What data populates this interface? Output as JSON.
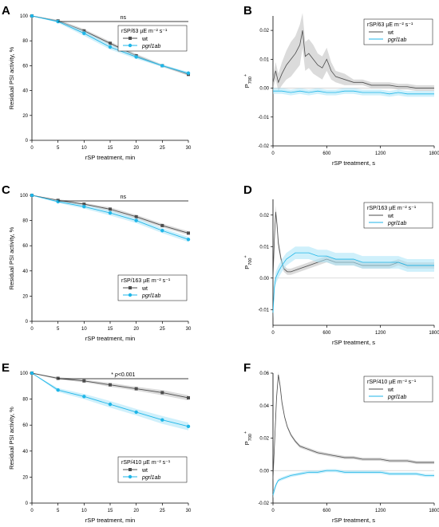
{
  "figure": {
    "panels": [
      "A",
      "B",
      "C",
      "D",
      "E",
      "F"
    ]
  },
  "colors": {
    "wt": "#4d4d4d",
    "wt_light": "#bdbdbd",
    "mutant": "#1fb6e8",
    "mutant_light": "#a8e3f7",
    "zero_line": "#d0d0d0"
  },
  "chart_data": [
    {
      "panel": "A",
      "type": "line",
      "xlabel": "rSP treatment, min",
      "ylabel": "Residual PSI activity, %",
      "xlim": [
        0,
        30
      ],
      "ylim": [
        0,
        100
      ],
      "xticks": [
        0,
        5,
        10,
        15,
        20,
        25,
        30
      ],
      "yticks": [
        0,
        20,
        40,
        60,
        80,
        100
      ],
      "legend": {
        "title": "rSP/63 µE m⁻² s⁻¹",
        "position": "top-right"
      },
      "annotation": {
        "text": "ns",
        "x_from": 5,
        "x_to": 30
      },
      "x": [
        0,
        5,
        10,
        15,
        20,
        25,
        30
      ],
      "series": [
        {
          "name": "wt",
          "values": [
            100,
            96,
            88,
            78,
            68,
            60,
            53
          ],
          "error": [
            0,
            1,
            1.5,
            1.5,
            1.5,
            1,
            1
          ]
        },
        {
          "name": "pgrl1ab",
          "values": [
            100,
            95.5,
            86,
            75,
            67,
            60,
            54
          ],
          "error": [
            0,
            1,
            2,
            2,
            1.5,
            1,
            1
          ]
        }
      ]
    },
    {
      "panel": "B",
      "type": "line",
      "xlabel": "rSP treatment, s",
      "ylabel": "P700+",
      "xlim": [
        0,
        1800
      ],
      "ylim": [
        -0.02,
        0.025
      ],
      "xticks": [
        0,
        600,
        1200,
        1800
      ],
      "yticks": [
        -0.02,
        -0.01,
        0.0,
        0.01,
        0.02
      ],
      "legend": {
        "title": "rSP/63 µE m⁻² s⁻¹",
        "position": "top-right"
      },
      "series": [
        {
          "name": "wt",
          "x": [
            0,
            30,
            60,
            100,
            150,
            200,
            250,
            300,
            330,
            360,
            400,
            450,
            500,
            550,
            600,
            650,
            700,
            800,
            900,
            1000,
            1100,
            1200,
            1300,
            1400,
            1500,
            1600,
            1700,
            1800
          ],
          "values": [
            0.002,
            0.006,
            0.002,
            0.005,
            0.008,
            0.01,
            0.012,
            0.015,
            0.02,
            0.011,
            0.012,
            0.01,
            0.008,
            0.007,
            0.01,
            0.006,
            0.004,
            0.003,
            0.002,
            0.002,
            0.001,
            0.001,
            0.001,
            0.0005,
            0.0005,
            0.0,
            0.0,
            0.0
          ],
          "band": [
            0.002,
            0.003,
            0.003,
            0.004,
            0.005,
            0.006,
            0.006,
            0.007,
            0.006,
            0.005,
            0.005,
            0.005,
            0.004,
            0.004,
            0.004,
            0.003,
            0.002,
            0.002,
            0.001,
            0.001,
            0.001,
            0.001,
            0.001,
            0.001,
            0.001,
            0.001,
            0.001,
            0.001
          ]
        },
        {
          "name": "pgrl1ab",
          "x": [
            0,
            100,
            200,
            300,
            400,
            500,
            600,
            700,
            800,
            900,
            1000,
            1100,
            1200,
            1300,
            1400,
            1500,
            1600,
            1700,
            1800
          ],
          "values": [
            -0.001,
            -0.001,
            -0.0015,
            -0.001,
            -0.0015,
            -0.001,
            -0.0015,
            -0.0015,
            -0.001,
            -0.001,
            -0.0015,
            -0.0015,
            -0.0015,
            -0.002,
            -0.0015,
            -0.002,
            -0.002,
            -0.002,
            -0.002
          ],
          "band": [
            0.001,
            0.001,
            0.001,
            0.001,
            0.001,
            0.001,
            0.001,
            0.001,
            0.001,
            0.001,
            0.001,
            0.001,
            0.001,
            0.001,
            0.001,
            0.001,
            0.001,
            0.001,
            0.001
          ]
        }
      ]
    },
    {
      "panel": "C",
      "type": "line",
      "xlabel": "rSP treatment, min",
      "ylabel": "Residual PSI activity, %",
      "xlim": [
        0,
        30
      ],
      "ylim": [
        0,
        100
      ],
      "xticks": [
        0,
        5,
        10,
        15,
        20,
        25,
        30
      ],
      "yticks": [
        0,
        20,
        40,
        60,
        80,
        100
      ],
      "legend": {
        "title": "rSP/163 µE m⁻² s⁻¹",
        "position": "bottom-right"
      },
      "annotation": {
        "text": "ns",
        "x_from": 5,
        "x_to": 30
      },
      "x": [
        0,
        5,
        10,
        15,
        20,
        25,
        30
      ],
      "series": [
        {
          "name": "wt",
          "values": [
            100,
            96,
            93,
            89,
            83,
            76,
            70
          ],
          "error": [
            0,
            1,
            1,
            1.5,
            1.5,
            1.5,
            1.5
          ]
        },
        {
          "name": "pgrl1ab",
          "values": [
            100,
            95,
            91,
            86,
            80,
            72,
            65
          ],
          "error": [
            0,
            1,
            1.5,
            2,
            2,
            2,
            2
          ]
        }
      ]
    },
    {
      "panel": "D",
      "type": "line",
      "xlabel": "rSP treatment, s",
      "ylabel": "P700+",
      "xlim": [
        0,
        1800
      ],
      "ylim": [
        -0.015,
        0.025
      ],
      "xticks": [
        0,
        600,
        1200,
        1800
      ],
      "yticks": [
        -0.01,
        0.0,
        0.01,
        0.02
      ],
      "legend": {
        "title": "rSP/163 µE m⁻² s⁻¹",
        "position": "top-right"
      },
      "series": [
        {
          "name": "wt",
          "x": [
            0,
            15,
            30,
            45,
            60,
            90,
            120,
            160,
            200,
            300,
            400,
            500,
            600,
            700,
            800,
            900,
            1000,
            1100,
            1200,
            1300,
            1400,
            1500,
            1600,
            1700,
            1800
          ],
          "values": [
            0.0,
            0.012,
            0.021,
            0.017,
            0.011,
            0.006,
            0.003,
            0.002,
            0.002,
            0.003,
            0.004,
            0.005,
            0.006,
            0.005,
            0.005,
            0.005,
            0.004,
            0.004,
            0.004,
            0.004,
            0.005,
            0.004,
            0.004,
            0.004,
            0.004
          ],
          "band": [
            0.001,
            0.002,
            0.002,
            0.002,
            0.002,
            0.001,
            0.001,
            0.001,
            0.001,
            0.001,
            0.001,
            0.001,
            0.001,
            0.001,
            0.001,
            0.001,
            0.001,
            0.001,
            0.001,
            0.001,
            0.001,
            0.001,
            0.001,
            0.001,
            0.001
          ]
        },
        {
          "name": "pgrl1ab",
          "x": [
            0,
            15,
            30,
            60,
            100,
            150,
            200,
            250,
            300,
            400,
            500,
            600,
            700,
            800,
            900,
            1000,
            1100,
            1200,
            1300,
            1400,
            1500,
            1600,
            1700,
            1800
          ],
          "values": [
            -0.011,
            -0.003,
            0.0,
            0.002,
            0.004,
            0.006,
            0.007,
            0.008,
            0.008,
            0.008,
            0.007,
            0.007,
            0.006,
            0.006,
            0.006,
            0.005,
            0.005,
            0.005,
            0.005,
            0.005,
            0.004,
            0.004,
            0.004,
            0.004
          ],
          "band": [
            0.002,
            0.002,
            0.002,
            0.002,
            0.002,
            0.002,
            0.002,
            0.002,
            0.002,
            0.002,
            0.002,
            0.002,
            0.002,
            0.002,
            0.002,
            0.002,
            0.002,
            0.002,
            0.002,
            0.002,
            0.002,
            0.002,
            0.002,
            0.002
          ]
        }
      ]
    },
    {
      "panel": "E",
      "type": "line",
      "xlabel": "rSP treatment, min",
      "ylabel": "Residual PSI activity, %",
      "xlim": [
        0,
        30
      ],
      "ylim": [
        0,
        100
      ],
      "xticks": [
        0,
        5,
        10,
        15,
        20,
        25,
        30
      ],
      "yticks": [
        0,
        20,
        40,
        60,
        80,
        100
      ],
      "legend": {
        "title": "rSP/410 µE m⁻² s⁻¹",
        "position": "bottom-right"
      },
      "annotation": {
        "text": "* p<0.001",
        "x_from": 5,
        "x_to": 30
      },
      "x": [
        0,
        5,
        10,
        15,
        20,
        25,
        30
      ],
      "series": [
        {
          "name": "wt",
          "values": [
            100,
            96,
            94,
            91,
            88,
            85,
            81
          ],
          "error": [
            0,
            1,
            1,
            1.5,
            1.5,
            2,
            2
          ]
        },
        {
          "name": "pgrl1ab",
          "values": [
            100,
            87,
            82,
            76,
            70,
            64,
            59
          ],
          "error": [
            0,
            1.5,
            2,
            2.5,
            2.5,
            3,
            3
          ]
        }
      ]
    },
    {
      "panel": "F",
      "type": "line",
      "xlabel": "rSP treatment, s",
      "ylabel": "P700+",
      "xlim": [
        0,
        1800
      ],
      "ylim": [
        -0.02,
        0.06
      ],
      "xticks": [
        0,
        600,
        1200,
        1800
      ],
      "yticks": [
        -0.02,
        0.0,
        0.02,
        0.04,
        0.06
      ],
      "legend": {
        "title": "rSP/410 µE m⁻² s⁻¹",
        "position": "top-right"
      },
      "series": [
        {
          "name": "wt",
          "x": [
            0,
            20,
            40,
            60,
            80,
            100,
            130,
            160,
            200,
            250,
            300,
            400,
            500,
            600,
            700,
            800,
            900,
            1000,
            1100,
            1200,
            1300,
            1400,
            1500,
            1600,
            1700,
            1800
          ],
          "values": [
            -0.005,
            0.02,
            0.045,
            0.059,
            0.052,
            0.042,
            0.033,
            0.027,
            0.022,
            0.018,
            0.015,
            0.013,
            0.011,
            0.01,
            0.009,
            0.008,
            0.008,
            0.007,
            0.007,
            0.007,
            0.006,
            0.006,
            0.006,
            0.005,
            0.005,
            0.005
          ],
          "band": [
            0.002,
            0.002,
            0.002,
            0.002,
            0.002,
            0.002,
            0.001,
            0.001,
            0.001,
            0.001,
            0.001,
            0.001,
            0.001,
            0.001,
            0.001,
            0.001,
            0.001,
            0.001,
            0.001,
            0.001,
            0.001,
            0.001,
            0.001,
            0.001,
            0.001,
            0.001
          ]
        },
        {
          "name": "pgrl1ab",
          "x": [
            0,
            20,
            40,
            60,
            100,
            150,
            200,
            300,
            400,
            500,
            600,
            700,
            800,
            900,
            1000,
            1100,
            1200,
            1300,
            1400,
            1500,
            1600,
            1700,
            1800
          ],
          "values": [
            -0.015,
            -0.011,
            -0.008,
            -0.006,
            -0.005,
            -0.004,
            -0.003,
            -0.002,
            -0.001,
            -0.001,
            0.0,
            0.0,
            -0.001,
            -0.001,
            -0.001,
            -0.001,
            -0.001,
            -0.002,
            -0.002,
            -0.002,
            -0.002,
            -0.003,
            -0.003
          ],
          "band": [
            0.002,
            0.002,
            0.001,
            0.001,
            0.001,
            0.001,
            0.001,
            0.001,
            0.001,
            0.001,
            0.001,
            0.001,
            0.001,
            0.001,
            0.001,
            0.001,
            0.001,
            0.001,
            0.001,
            0.001,
            0.001,
            0.001,
            0.001
          ]
        }
      ]
    }
  ]
}
